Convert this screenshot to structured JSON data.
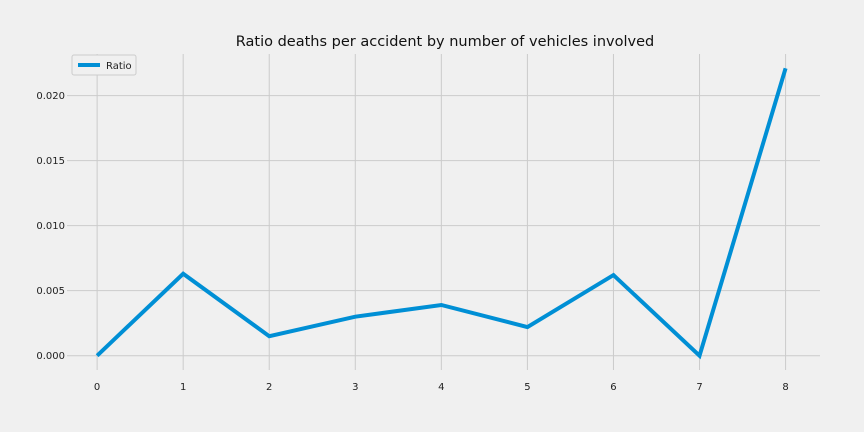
{
  "chart_data": {
    "type": "line",
    "title": "Ratio deaths per accident by number of vehicles involved",
    "xlabel": "",
    "ylabel": "",
    "x": [
      0,
      1,
      2,
      3,
      4,
      5,
      6,
      7,
      8
    ],
    "series": [
      {
        "name": "Ratio",
        "color": "#008fd5",
        "values": [
          0.0,
          0.0063,
          0.0015,
          0.003,
          0.0039,
          0.0022,
          0.0062,
          0.0,
          0.0221
        ]
      }
    ],
    "xticks": [
      "0",
      "1",
      "2",
      "3",
      "4",
      "5",
      "6",
      "7",
      "8"
    ],
    "yticks": [
      "0.000",
      "0.005",
      "0.010",
      "0.015",
      "0.020"
    ],
    "xlim": [
      -0.35,
      8.4
    ],
    "ylim": [
      -0.0011,
      0.0232
    ],
    "grid": true,
    "legend_position": "top-left"
  }
}
